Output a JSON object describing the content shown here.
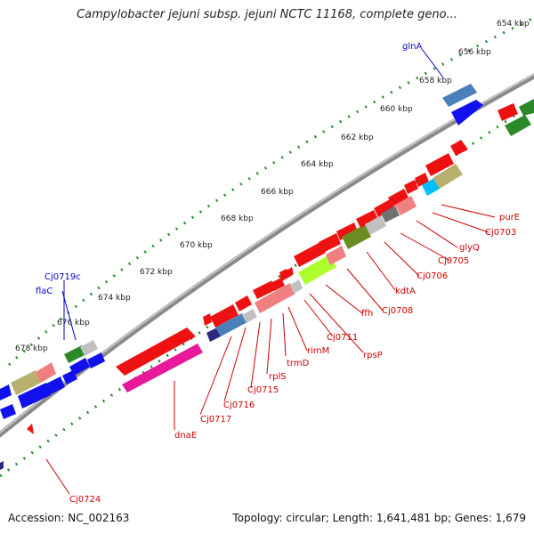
{
  "title": "Campylobacter jejuni subsp. jejuni NCTC 11168, complete geno...",
  "footer": {
    "accession": "Accession: NC_002163",
    "stats": "Topology: circular; Length: 1,641,481 bp; Genes: 1,679"
  },
  "colors": {
    "backbone": "#8a8a8a",
    "tick": "#2e8b2e",
    "gene_red": "#ee1111",
    "gene_blue": "#1111ee",
    "gene_green": "#2a8a2a",
    "label_red": "#cc0000",
    "label_blue": "#0000cc"
  },
  "scale": {
    "unit": "kbp",
    "labels": [
      {
        "text": "654 kbp"
      },
      {
        "text": "656 kbp"
      },
      {
        "text": "658 kbp"
      },
      {
        "text": "660 kbp"
      },
      {
        "text": "662 kbp"
      },
      {
        "text": "664 kbp"
      },
      {
        "text": "666 kbp"
      },
      {
        "text": "668 kbp"
      },
      {
        "text": "670 kbp"
      },
      {
        "text": "672 kbp"
      },
      {
        "text": "674 kbp"
      },
      {
        "text": "676 kbp"
      },
      {
        "text": "678 kbp"
      }
    ]
  },
  "gene_labels": [
    {
      "text": "glnA",
      "color": "blue"
    },
    {
      "text": "Cj0719c",
      "color": "blue"
    },
    {
      "text": "flaC",
      "color": "blue"
    },
    {
      "text": "purE",
      "color": "red"
    },
    {
      "text": "Cj0703",
      "color": "red"
    },
    {
      "text": "glyQ",
      "color": "red"
    },
    {
      "text": "Cj0705",
      "color": "red"
    },
    {
      "text": "Cj0706",
      "color": "red"
    },
    {
      "text": "kdtA",
      "color": "red"
    },
    {
      "text": "Cj0708",
      "color": "red"
    },
    {
      "text": "ffh",
      "color": "red"
    },
    {
      "text": "rpsP",
      "color": "red"
    },
    {
      "text": "Cj0711",
      "color": "red"
    },
    {
      "text": "rimM",
      "color": "red"
    },
    {
      "text": "trmD",
      "color": "red"
    },
    {
      "text": "rplS",
      "color": "red"
    },
    {
      "text": "Cj0715",
      "color": "red"
    },
    {
      "text": "Cj0716",
      "color": "red"
    },
    {
      "text": "Cj0717",
      "color": "red"
    },
    {
      "text": "dnaE",
      "color": "red"
    },
    {
      "text": "Cj0724",
      "color": "red"
    }
  ]
}
